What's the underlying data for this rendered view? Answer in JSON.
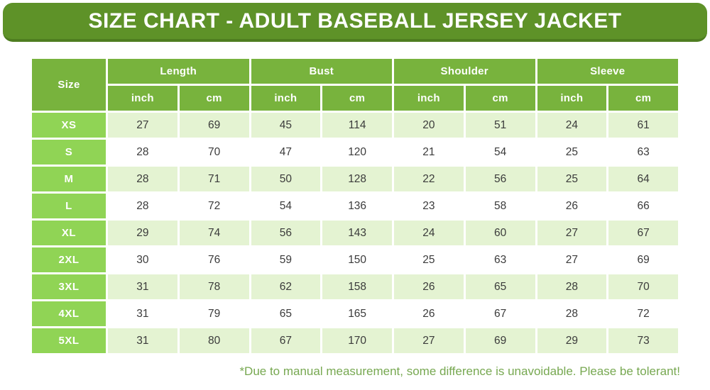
{
  "title": "SIZE CHART - ADULT BASEBALL JERSEY JACKET",
  "footer_note": "*Due to manual measurement, some difference is unavoidable. Please be tolerant!",
  "colors": {
    "banner_bg": "#5e9228",
    "banner_edge": "#4e7d20",
    "header_cell_bg": "#78b33d",
    "size_cell_bg": "#90d455",
    "row_alt_bg": "#e4f3d2",
    "row_bg": "#ffffff",
    "data_text": "#3b3b3b",
    "footer_text": "#77a851"
  },
  "table": {
    "size_header": "Size",
    "groups": [
      {
        "label": "Length"
      },
      {
        "label": "Bust"
      },
      {
        "label": "Shoulder"
      },
      {
        "label": "Sleeve"
      }
    ],
    "unit_headers": [
      "inch",
      "cm",
      "inch",
      "cm",
      "inch",
      "cm",
      "inch",
      "cm"
    ],
    "rows": [
      {
        "size": "XS",
        "values": [
          27,
          69,
          45,
          114,
          20,
          51,
          24,
          61
        ]
      },
      {
        "size": "S",
        "values": [
          28,
          70,
          47,
          120,
          21,
          54,
          25,
          63
        ]
      },
      {
        "size": "M",
        "values": [
          28,
          71,
          50,
          128,
          22,
          56,
          25,
          64
        ]
      },
      {
        "size": "L",
        "values": [
          28,
          72,
          54,
          136,
          23,
          58,
          26,
          66
        ]
      },
      {
        "size": "XL",
        "values": [
          29,
          74,
          56,
          143,
          24,
          60,
          27,
          67
        ]
      },
      {
        "size": "2XL",
        "values": [
          30,
          76,
          59,
          150,
          25,
          63,
          27,
          69
        ]
      },
      {
        "size": "3XL",
        "values": [
          31,
          78,
          62,
          158,
          26,
          65,
          28,
          70
        ]
      },
      {
        "size": "4XL",
        "values": [
          31,
          79,
          65,
          165,
          26,
          67,
          28,
          72
        ]
      },
      {
        "size": "5XL",
        "values": [
          31,
          80,
          67,
          170,
          27,
          69,
          29,
          73
        ]
      }
    ]
  },
  "chart_data": {
    "type": "table",
    "title": "SIZE CHART - ADULT BASEBALL JERSEY JACKET",
    "columns": [
      "Size",
      "Length (inch)",
      "Length (cm)",
      "Bust (inch)",
      "Bust (cm)",
      "Shoulder (inch)",
      "Shoulder (cm)",
      "Sleeve (inch)",
      "Sleeve (cm)"
    ],
    "rows": [
      [
        "XS",
        27,
        69,
        45,
        114,
        20,
        51,
        24,
        61
      ],
      [
        "S",
        28,
        70,
        47,
        120,
        21,
        54,
        25,
        63
      ],
      [
        "M",
        28,
        71,
        50,
        128,
        22,
        56,
        25,
        64
      ],
      [
        "L",
        28,
        72,
        54,
        136,
        23,
        58,
        26,
        66
      ],
      [
        "XL",
        29,
        74,
        56,
        143,
        24,
        60,
        27,
        67
      ],
      [
        "2XL",
        30,
        76,
        59,
        150,
        25,
        63,
        27,
        69
      ],
      [
        "3XL",
        31,
        78,
        62,
        158,
        26,
        65,
        28,
        70
      ],
      [
        "4XL",
        31,
        79,
        65,
        165,
        26,
        67,
        28,
        72
      ],
      [
        "5XL",
        31,
        80,
        67,
        170,
        27,
        69,
        29,
        73
      ]
    ],
    "note": "*Due to manual measurement, some difference is unavoidable. Please be tolerant!"
  }
}
